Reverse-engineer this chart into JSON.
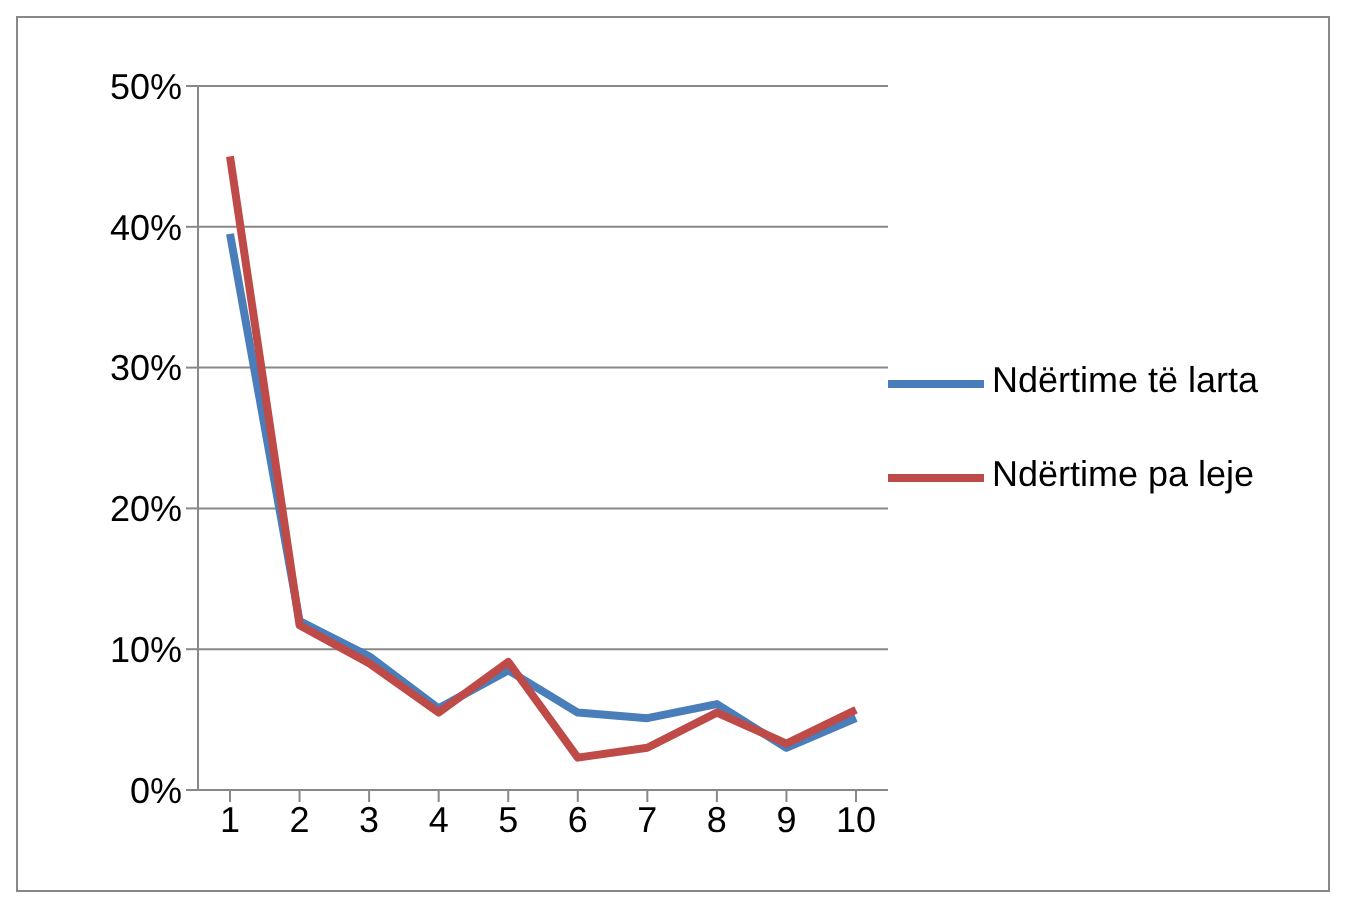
{
  "chart_data": {
    "type": "line",
    "categories": [
      "1",
      "2",
      "3",
      "4",
      "5",
      "6",
      "7",
      "8",
      "9",
      "10"
    ],
    "series": [
      {
        "name": "Ndërtime të larta",
        "color": "#4a7ebb",
        "values": [
          39.5,
          12,
          9.5,
          5.8,
          8.5,
          5.5,
          5.1,
          6.1,
          3,
          5.1
        ]
      },
      {
        "name": "Ndërtime pa leje",
        "color": "#be4b48",
        "values": [
          45,
          11.7,
          9,
          5.5,
          9.1,
          2.3,
          3,
          5.5,
          3.3,
          5.7
        ]
      }
    ],
    "ylim": [
      0,
      50
    ],
    "yticks": [
      {
        "value": 0,
        "label": "0%"
      },
      {
        "value": 10,
        "label": "10%"
      },
      {
        "value": 20,
        "label": "20%"
      },
      {
        "value": 30,
        "label": "30%"
      },
      {
        "value": 40,
        "label": "40%"
      },
      {
        "value": 50,
        "label": "50%"
      }
    ],
    "grid": "y",
    "legend": "right",
    "marker": "none",
    "line_style": "solid"
  }
}
